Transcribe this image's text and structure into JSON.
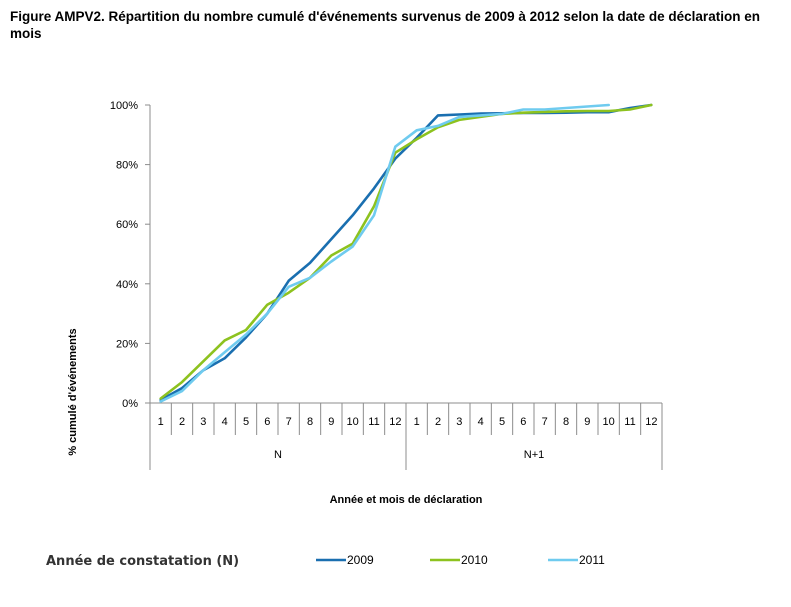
{
  "chart_data": {
    "type": "line",
    "title": "Figure AMPV2. Répartition du nombre cumulé d'événements survenus de 2009 à 2012 selon la date de déclaration en mois",
    "ylabel": "% cumulé d'événements",
    "xlabel": "Année et mois de déclaration",
    "ylim": [
      0,
      100
    ],
    "y_ticks": [
      "0%",
      "20%",
      "40%",
      "60%",
      "80%",
      "100%"
    ],
    "y_tick_values": [
      0,
      20,
      40,
      60,
      80,
      100
    ],
    "months": [
      "1",
      "2",
      "3",
      "4",
      "5",
      "6",
      "7",
      "8",
      "9",
      "10",
      "11",
      "12",
      "1",
      "2",
      "3",
      "4",
      "5",
      "6",
      "7",
      "8",
      "9",
      "10",
      "11",
      "12"
    ],
    "groups": [
      {
        "label": "N",
        "start": 0,
        "end": 11
      },
      {
        "label": "N+1",
        "start": 12,
        "end": 23
      }
    ],
    "legend_title": "Année de constatation (N)",
    "legend_position": "bottom",
    "grid": false,
    "series": [
      {
        "name": "2009",
        "color": "#1a6fb0",
        "values": [
          1,
          5,
          11,
          15,
          22,
          30,
          41,
          47,
          55,
          63,
          72,
          82,
          89,
          96.5,
          96.8,
          97.1,
          97.2,
          97.3,
          97.3,
          97.4,
          97.6,
          97.6,
          99,
          100
        ]
      },
      {
        "name": "2010",
        "color": "#8dc21f",
        "values": [
          1.5,
          7,
          14,
          21,
          24.5,
          33,
          37,
          42,
          49.5,
          53.5,
          66,
          84,
          88.5,
          92.5,
          95,
          96,
          97,
          97.4,
          97.7,
          97.9,
          98,
          98,
          98.5,
          100
        ]
      },
      {
        "name": "2011",
        "color": "#6fcbef",
        "values": [
          0.5,
          4,
          11,
          17,
          23,
          30,
          39,
          42,
          47.5,
          52.5,
          63,
          86,
          91.5,
          93,
          96,
          96.5,
          97,
          98.5,
          98.5,
          99,
          99.5,
          100
        ]
      }
    ]
  }
}
